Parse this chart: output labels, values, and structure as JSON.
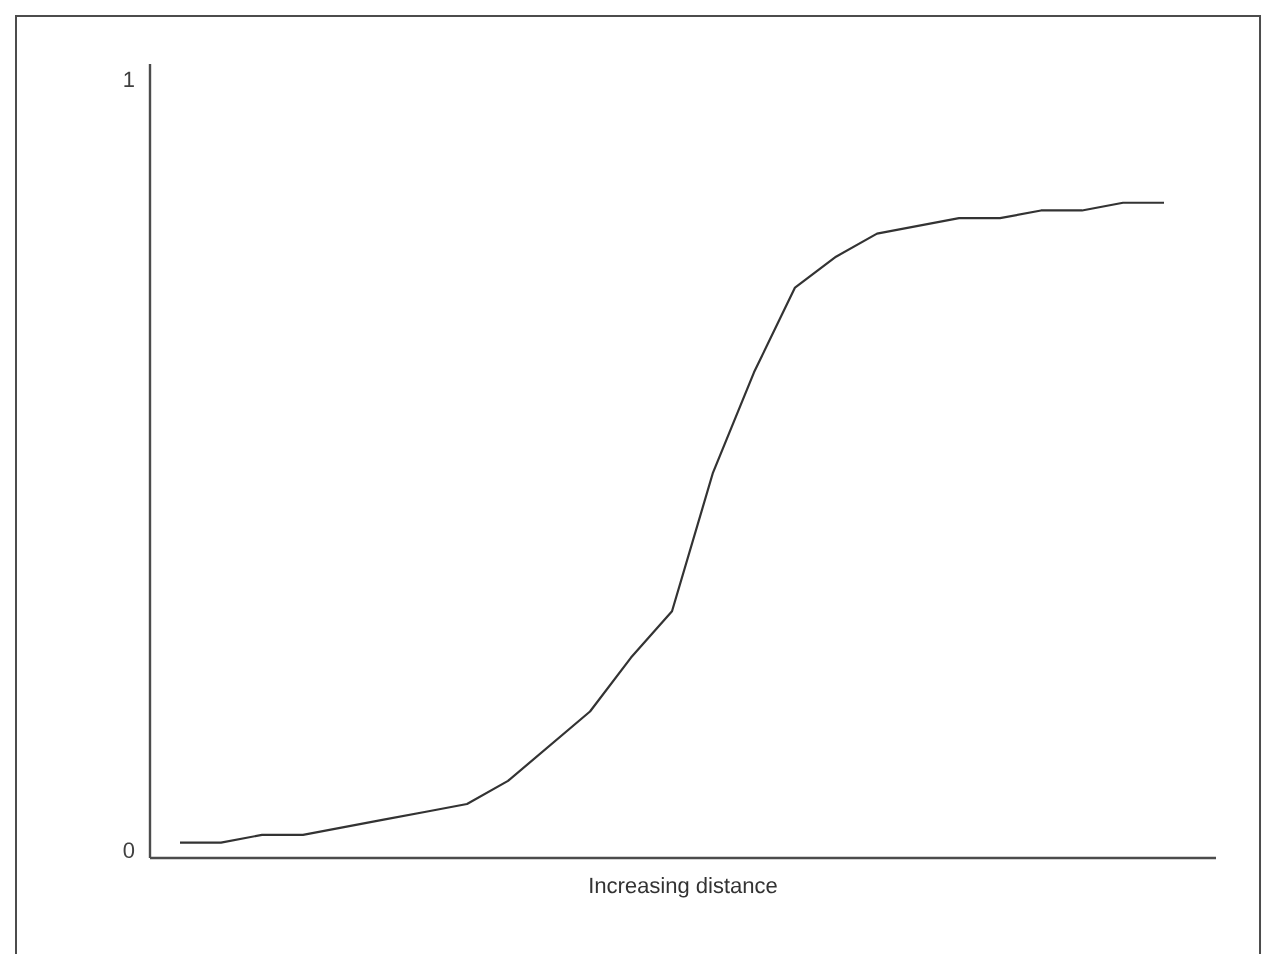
{
  "chart_data": {
    "type": "line",
    "xlabel": "Increasing distance",
    "categories": [
      null,
      null,
      null,
      null,
      null,
      null,
      null,
      null,
      null,
      null,
      null,
      null,
      null,
      null,
      null,
      null,
      null,
      null,
      null,
      null,
      null,
      null,
      null,
      null,
      null
    ],
    "series": [
      {
        "color": "#333333",
        "values": [
          0.01,
          0.01,
          0.02,
          0.02,
          0.03,
          0.04,
          0.05,
          0.06,
          0.09,
          0.135,
          0.18,
          0.25,
          0.31,
          0.49,
          0.62,
          0.73,
          0.77,
          0.8,
          0.81,
          0.82,
          0.82,
          0.83,
          0.83,
          0.84,
          0.84
        ]
      }
    ],
    "ylim": [
      -0.01,
      1.02
    ],
    "yticks": [
      0,
      1
    ],
    "tick_labels": "y",
    "grid": false,
    "marker": "none",
    "line_style": "solid"
  }
}
